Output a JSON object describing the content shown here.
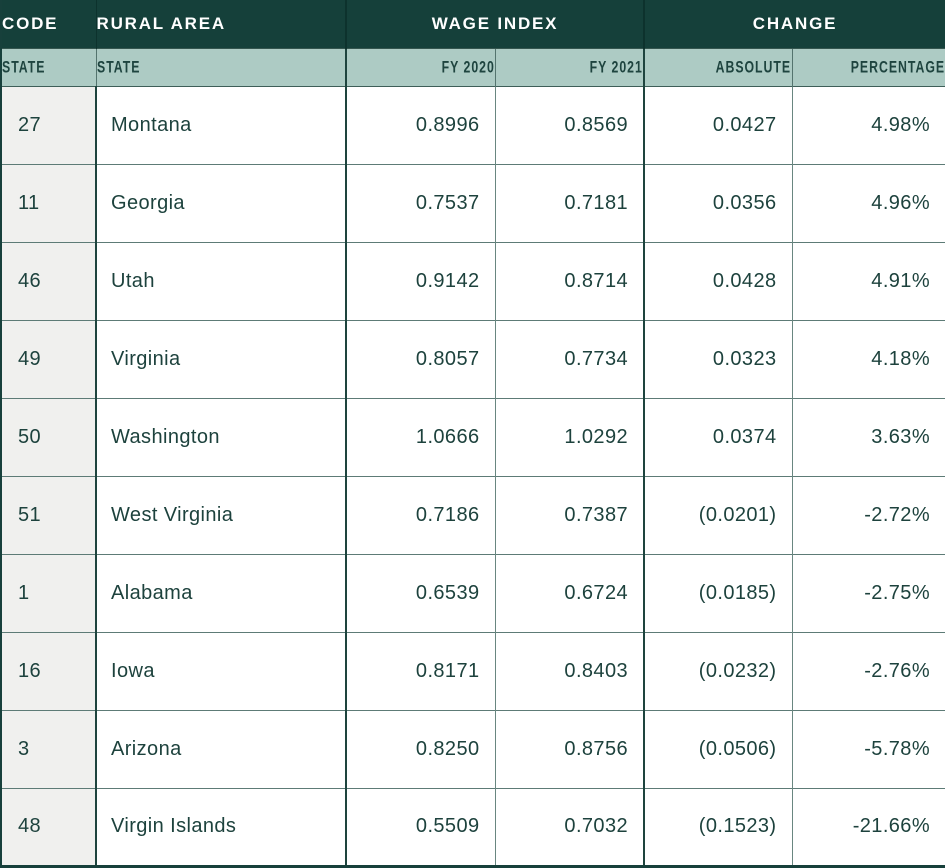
{
  "colors": {
    "header_dark_bg": "#15403a",
    "header_light_bg": "#adcbc4",
    "text_dark_teal": "#1d423d",
    "code_column_bg": "#f0f0ee",
    "row_border": "#5d7b76",
    "section_border": "#1e443e",
    "header_text_white": "#ffffff"
  },
  "table": {
    "header": {
      "code": "CODE",
      "rural_area": "RURAL AREA",
      "wage_index": "WAGE INDEX",
      "change": "CHANGE"
    },
    "subheader": {
      "code_state": "STATE",
      "rural_state": "STATE",
      "fy2020": "FY 2020",
      "fy2021": "FY 2021",
      "absolute": "ABSOLUTE",
      "percentage": "PERCENTAGE"
    },
    "rows": [
      {
        "code": "27",
        "state": "Montana",
        "fy2020": "0.8996",
        "fy2021": "0.8569",
        "absolute": "0.0427",
        "percentage": "4.98%"
      },
      {
        "code": "11",
        "state": "Georgia",
        "fy2020": "0.7537",
        "fy2021": "0.7181",
        "absolute": "0.0356",
        "percentage": "4.96%"
      },
      {
        "code": "46",
        "state": "Utah",
        "fy2020": "0.9142",
        "fy2021": "0.8714",
        "absolute": "0.0428",
        "percentage": "4.91%"
      },
      {
        "code": "49",
        "state": "Virginia",
        "fy2020": "0.8057",
        "fy2021": "0.7734",
        "absolute": "0.0323",
        "percentage": "4.18%"
      },
      {
        "code": "50",
        "state": "Washington",
        "fy2020": "1.0666",
        "fy2021": "1.0292",
        "absolute": "0.0374",
        "percentage": "3.63%"
      },
      {
        "code": "51",
        "state": "West Virginia",
        "fy2020": "0.7186",
        "fy2021": "0.7387",
        "absolute": "(0.0201)",
        "percentage": "-2.72%"
      },
      {
        "code": "1",
        "state": "Alabama",
        "fy2020": "0.6539",
        "fy2021": "0.6724",
        "absolute": "(0.0185)",
        "percentage": "-2.75%"
      },
      {
        "code": "16",
        "state": "Iowa",
        "fy2020": "0.8171",
        "fy2021": "0.8403",
        "absolute": "(0.0232)",
        "percentage": "-2.76%"
      },
      {
        "code": "3",
        "state": "Arizona",
        "fy2020": "0.8250",
        "fy2021": "0.8756",
        "absolute": "(0.0506)",
        "percentage": "-5.78%"
      },
      {
        "code": "48",
        "state": "Virgin Islands",
        "fy2020": "0.5509",
        "fy2021": "0.7032",
        "absolute": "(0.1523)",
        "percentage": "-21.66%"
      }
    ]
  }
}
